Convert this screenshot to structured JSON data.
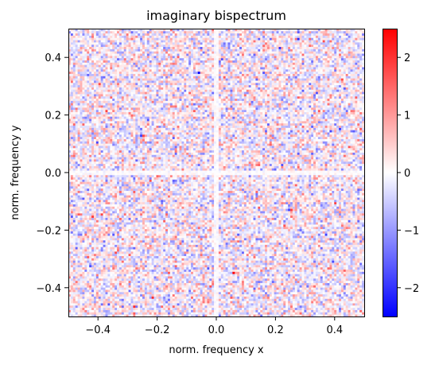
{
  "chart_data": {
    "type": "heatmap",
    "title": "imaginary bispectrum",
    "xlabel": "norm. frequency x",
    "ylabel": "norm. frequency y",
    "xlim": [
      -0.5,
      0.5
    ],
    "ylim": [
      -0.5,
      0.5
    ],
    "x_ticks": [
      -0.4,
      -0.2,
      0.0,
      0.2,
      0.4
    ],
    "x_tick_labels": [
      "−0.4",
      "−0.2",
      "0.0",
      "0.2",
      "0.4"
    ],
    "y_ticks": [
      -0.4,
      -0.2,
      0.0,
      0.2,
      0.4
    ],
    "y_tick_labels": [
      "−0.4",
      "−0.2",
      "0.0",
      "0.2",
      "0.4"
    ],
    "colormap": "bwr",
    "colormap_colors": [
      "#0000ff",
      "#ffffff",
      "#ff0000"
    ],
    "color_range": [
      -2.5,
      2.5
    ],
    "colorbar_ticks": [
      -2,
      -1,
      0,
      1,
      2
    ],
    "colorbar_tick_labels": [
      "−2",
      "−1",
      "0",
      "1",
      "2"
    ],
    "grid": false,
    "value_distribution": "noise-like, approx. zero-mean, antisymmetric about the origin, near zero along the axes and diagonals, values mostly within ±1.5"
  }
}
